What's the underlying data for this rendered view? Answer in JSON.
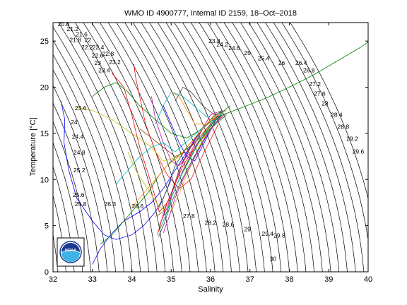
{
  "chart_data": {
    "type": "scatter",
    "title": "WMO ID 4900777, internal ID 2159, 18–Oct–2018",
    "xlabel": "Salinity",
    "ylabel": "Temperature [°C]",
    "xlim": [
      32,
      40
    ],
    "ylim": [
      0,
      27
    ],
    "xticks": [
      "32",
      "33",
      "34",
      "35",
      "36",
      "37",
      "38",
      "39",
      "40"
    ],
    "yticks": [
      "0",
      "5",
      "10",
      "15",
      "20",
      "25"
    ],
    "grid": false,
    "logo": "NOAA",
    "density_contour_labels": [
      {
        "text": "20.8",
        "x": 32.12,
        "y": 26.6
      },
      {
        "text": "21.2",
        "x": 32.35,
        "y": 26.1
      },
      {
        "text": "21.6",
        "x": 32.58,
        "y": 25.5
      },
      {
        "text": "21.8",
        "x": 32.42,
        "y": 24.9
      },
      {
        "text": "22",
        "x": 32.8,
        "y": 24.9
      },
      {
        "text": "22.2",
        "x": 32.72,
        "y": 24.1
      },
      {
        "text": "22.4",
        "x": 33.0,
        "y": 24.1
      },
      {
        "text": "22.6",
        "x": 32.98,
        "y": 23.2
      },
      {
        "text": "22.8",
        "x": 33.25,
        "y": 23.4
      },
      {
        "text": "23",
        "x": 33.05,
        "y": 22.4
      },
      {
        "text": "23.2",
        "x": 33.42,
        "y": 22.5
      },
      {
        "text": "23.4",
        "x": 33.15,
        "y": 21.6
      },
      {
        "text": "23.6",
        "x": 32.55,
        "y": 17.5
      },
      {
        "text": "24",
        "x": 32.45,
        "y": 16.0
      },
      {
        "text": "24.4",
        "x": 32.48,
        "y": 14.4
      },
      {
        "text": "24.8",
        "x": 32.52,
        "y": 12.7
      },
      {
        "text": "25.2",
        "x": 32.52,
        "y": 10.8
      },
      {
        "text": "25.6",
        "x": 32.5,
        "y": 8.1
      },
      {
        "text": "25.8",
        "x": 32.55,
        "y": 7.1
      },
      {
        "text": "26.3",
        "x": 33.3,
        "y": 7.1
      },
      {
        "text": "26.6",
        "x": 34.0,
        "y": 6.9
      },
      {
        "text": "23.8",
        "x": 35.95,
        "y": 24.8
      },
      {
        "text": "24.2",
        "x": 36.15,
        "y": 24.4
      },
      {
        "text": "24.6",
        "x": 36.45,
        "y": 24.0
      },
      {
        "text": "25",
        "x": 36.85,
        "y": 23.5
      },
      {
        "text": "25.4",
        "x": 37.2,
        "y": 22.9
      },
      {
        "text": "26",
        "x": 37.72,
        "y": 22.4
      },
      {
        "text": "26.4",
        "x": 38.15,
        "y": 22.4
      },
      {
        "text": "26.8",
        "x": 38.35,
        "y": 21.6
      },
      {
        "text": "27.2",
        "x": 38.5,
        "y": 20.1
      },
      {
        "text": "27.6",
        "x": 38.62,
        "y": 19.1
      },
      {
        "text": "28",
        "x": 38.82,
        "y": 18.0
      },
      {
        "text": "28.4",
        "x": 39.05,
        "y": 16.8
      },
      {
        "text": "28.8",
        "x": 39.22,
        "y": 15.5
      },
      {
        "text": "29.2",
        "x": 39.45,
        "y": 14.2
      },
      {
        "text": "29.6",
        "x": 39.6,
        "y": 12.8
      },
      {
        "text": "27.8",
        "x": 35.3,
        "y": 5.8
      },
      {
        "text": "28.2",
        "x": 35.85,
        "y": 5.1
      },
      {
        "text": "28.6",
        "x": 36.3,
        "y": 4.9
      },
      {
        "text": "29",
        "x": 36.85,
        "y": 4.4
      },
      {
        "text": "29.4",
        "x": 37.3,
        "y": 3.9
      },
      {
        "text": "29.8",
        "x": 37.6,
        "y": 3.7
      },
      {
        "text": "30",
        "x": 37.5,
        "y": 1.2
      }
    ],
    "series": [
      {
        "color": "#0000ff",
        "x": [
          32.2,
          32.3,
          32.28,
          32.4,
          32.6,
          33.0,
          33.3,
          33.6,
          34.0,
          34.3,
          34.6,
          34.8,
          35.0
        ],
        "y": [
          18.5,
          16.5,
          14.0,
          11.0,
          8.0,
          5.5,
          4.0,
          3.5,
          4.0,
          5.0,
          6.5,
          8.0,
          10.0
        ]
      },
      {
        "color": "#0000ff",
        "x": [
          33.0,
          33.2,
          33.5,
          33.8,
          34.2,
          34.5,
          34.8,
          35.1,
          35.4,
          35.7,
          36.0
        ],
        "y": [
          0.8,
          2.5,
          4.2,
          5.5,
          6.5,
          7.5,
          9.0,
          11.0,
          13.0,
          15.0,
          16.5
        ]
      },
      {
        "color": "#ff0000",
        "x": [
          33.5,
          33.8,
          34.0,
          34.2,
          34.5,
          34.7,
          35.0,
          35.3,
          35.6,
          36.0,
          36.3
        ],
        "y": [
          21.5,
          20.0,
          17.0,
          13.5,
          9.5,
          6.5,
          8.0,
          11.0,
          13.5,
          15.5,
          17.0
        ]
      },
      {
        "color": "#ff0000",
        "x": [
          34.05,
          34.1,
          34.2,
          34.35,
          34.6,
          34.9,
          35.2,
          35.5,
          35.9,
          36.2
        ],
        "y": [
          22.5,
          21.0,
          19.0,
          16.0,
          13.0,
          10.5,
          9.0,
          10.0,
          13.5,
          16.0
        ]
      },
      {
        "color": "#008000",
        "x": [
          33.0,
          33.3,
          33.6,
          33.9,
          34.2,
          34.6,
          35.0,
          35.4,
          35.8,
          36.2,
          36.5
        ],
        "y": [
          19.0,
          20.0,
          20.5,
          19.5,
          18.0,
          16.5,
          15.0,
          14.5,
          15.5,
          17.0,
          18.0
        ]
      },
      {
        "color": "#008000",
        "x": [
          33.2,
          33.5,
          33.8,
          34.1,
          34.4,
          34.7,
          35.0,
          35.3,
          35.6,
          36.0,
          36.4
        ],
        "y": [
          3.0,
          4.0,
          5.5,
          7.0,
          8.5,
          10.5,
          12.0,
          13.0,
          14.0,
          15.5,
          17.0
        ]
      },
      {
        "color": "#00bfbf",
        "x": [
          34.6,
          34.8,
          35.0,
          35.3,
          35.7,
          36.0,
          36.3
        ],
        "y": [
          16.0,
          18.0,
          19.5,
          19.0,
          17.5,
          16.5,
          17.0
        ]
      },
      {
        "color": "#00bfbf",
        "x": [
          33.6,
          33.9,
          34.2,
          34.5,
          34.8,
          35.1,
          35.5,
          35.9,
          36.3
        ],
        "y": [
          9.5,
          11.0,
          12.5,
          13.5,
          14.0,
          13.0,
          14.5,
          16.0,
          17.0
        ]
      },
      {
        "color": "#bf00bf",
        "x": [
          34.5,
          34.6,
          34.8,
          35.0,
          35.2,
          35.5,
          35.8,
          36.0,
          36.3
        ],
        "y": [
          19.0,
          16.5,
          14.0,
          12.0,
          11.5,
          13.0,
          15.5,
          17.0,
          17.5
        ]
      },
      {
        "color": "#bf00bf",
        "x": [
          34.7,
          34.9,
          35.1,
          35.3,
          35.6,
          35.9,
          36.2
        ],
        "y": [
          5.0,
          7.0,
          9.5,
          12.0,
          14.5,
          16.0,
          17.0
        ]
      },
      {
        "color": "#bfbf00",
        "x": [
          32.6,
          33.0,
          33.5,
          34.0,
          34.5,
          34.8,
          35.2,
          35.6,
          36.0,
          36.3
        ],
        "y": [
          17.8,
          17.5,
          16.5,
          15.0,
          13.5,
          12.0,
          12.5,
          14.5,
          16.5,
          17.5
        ]
      },
      {
        "color": "#bfbf00",
        "x": [
          33.9,
          34.1,
          34.4,
          34.7,
          35.0,
          35.3,
          35.7,
          36.1
        ],
        "y": [
          13.0,
          11.0,
          9.0,
          7.0,
          6.5,
          9.5,
          13.5,
          16.5
        ]
      },
      {
        "color": "#404040",
        "x": [
          35.1,
          35.3,
          35.5,
          35.8,
          36.1,
          36.4
        ],
        "y": [
          18.5,
          20.0,
          19.5,
          18.0,
          17.0,
          17.5
        ]
      },
      {
        "color": "#404040",
        "x": [
          34.7,
          34.9,
          35.1,
          35.4,
          35.7,
          36.0,
          36.3
        ],
        "y": [
          7.0,
          9.0,
          11.5,
          13.5,
          15.0,
          16.5,
          17.5
        ]
      },
      {
        "color": "#8b4513",
        "x": [
          34.2,
          34.5,
          34.8,
          35.1,
          35.4,
          35.7,
          36.0,
          36.3
        ],
        "y": [
          15.5,
          14.5,
          13.5,
          12.5,
          13.0,
          14.5,
          16.0,
          17.0
        ]
      },
      {
        "color": "#8b4513",
        "x": [
          34.6,
          34.8,
          35.0,
          35.2,
          35.5,
          35.8,
          36.1
        ],
        "y": [
          6.0,
          6.5,
          8.5,
          11.0,
          13.5,
          15.5,
          17.0
        ]
      },
      {
        "color": "#ff8c00",
        "x": [
          34.0,
          34.3,
          34.6,
          34.9,
          35.2,
          35.5,
          35.8,
          36.1
        ],
        "y": [
          7.0,
          8.5,
          10.0,
          11.5,
          12.5,
          14.0,
          15.5,
          17.0
        ]
      },
      {
        "color": "#ff8c00",
        "x": [
          35.0,
          35.2,
          35.4,
          35.6,
          35.9,
          36.2,
          36.4
        ],
        "y": [
          19.5,
          19.0,
          17.5,
          16.0,
          16.0,
          17.0,
          17.5
        ]
      },
      {
        "color": "#0000ff",
        "x": [
          34.8,
          35.0,
          35.2,
          35.4,
          35.6,
          35.9,
          36.2
        ],
        "y": [
          18.0,
          16.0,
          14.0,
          12.5,
          12.0,
          14.5,
          17.0
        ]
      },
      {
        "color": "#ff0000",
        "x": [
          34.65,
          34.75,
          34.9,
          35.1,
          35.3,
          35.6,
          35.9,
          36.2
        ],
        "y": [
          4.0,
          5.5,
          7.5,
          9.5,
          11.5,
          13.5,
          15.5,
          17.0
        ]
      },
      {
        "color": "#008000",
        "x": [
          34.7,
          34.85,
          35.0,
          35.2,
          35.45,
          35.7,
          36.0,
          36.3
        ],
        "y": [
          4.5,
          6.0,
          8.0,
          10.0,
          12.0,
          14.0,
          15.8,
          17.2
        ]
      },
      {
        "color": "#00bfbf",
        "x": [
          34.75,
          34.9,
          35.05,
          35.25,
          35.5,
          35.75,
          36.05,
          36.35
        ],
        "y": [
          5.0,
          6.5,
          8.5,
          10.5,
          12.5,
          14.5,
          16.2,
          17.5
        ]
      },
      {
        "color": "#bf00bf",
        "x": [
          34.8,
          34.95,
          35.1,
          35.3,
          35.55,
          35.8,
          36.1,
          36.4
        ],
        "y": [
          4.2,
          6.0,
          8.0,
          10.0,
          12.0,
          14.0,
          16.0,
          17.2
        ]
      },
      {
        "color": "#404040",
        "x": [
          34.68,
          34.82,
          34.98,
          35.18,
          35.42,
          35.68,
          35.95,
          36.25
        ],
        "y": [
          3.8,
          5.2,
          7.2,
          9.2,
          11.2,
          13.2,
          15.2,
          16.8
        ]
      },
      {
        "color": "#008000",
        "x": [
          36.3,
          36.8,
          37.4,
          38.0,
          38.6,
          39.2,
          39.8,
          40.0
        ],
        "y": [
          17.0,
          17.8,
          18.8,
          20.0,
          21.3,
          22.8,
          24.3,
          24.9
        ]
      }
    ]
  }
}
